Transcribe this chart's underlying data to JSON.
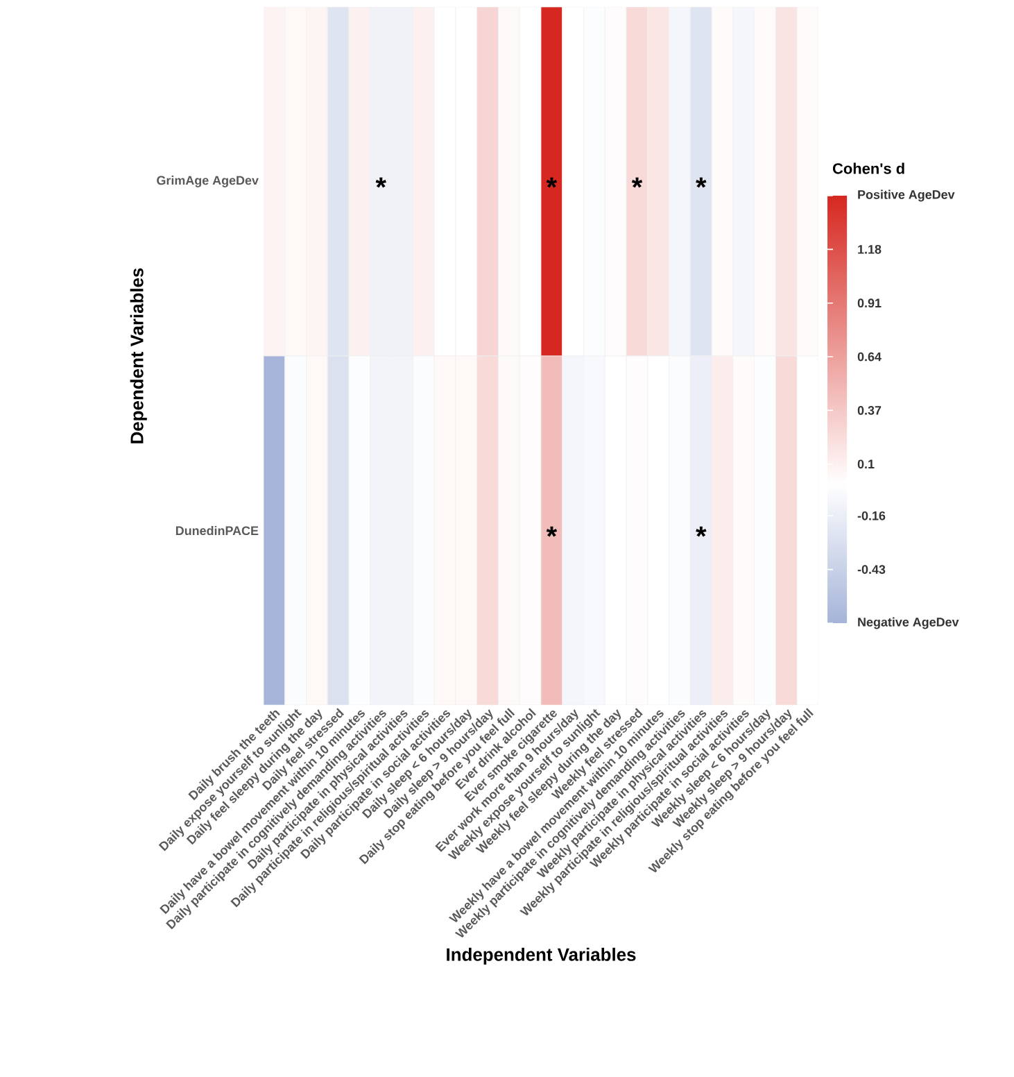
{
  "chart_data": {
    "type": "heatmap",
    "xlabel": "Independent Variables",
    "ylabel": "Dependent Variables",
    "clabel": "Cohen's d",
    "categories": [
      "Daily brush the teeth",
      "Daily expose yourself to sunlight",
      "Daily feel sleepy during the day",
      "Daily feel stressed",
      "Daily have a bowel movement within 10 minutes",
      "Daily participate in cognitively demanding activities",
      "Daily participate in physical activities",
      "Daily participate in religious/spiritual activities",
      "Daily participate in social activities",
      "Daily sleep < 6 hours/day",
      "Daily sleep > 9 hours/day",
      "Daily stop eating before you feel full",
      "Ever drink alcohol",
      "Ever smoke cigarette",
      "Ever work more than 9 hours/day",
      "Weekly expose yourself to sunlight",
      "Weekly feel sleepy during the day",
      "Weekly feel stressed",
      "Weekly have a bowel movement within 10 minutes",
      "Weekly participate in cognitively demanding activities",
      "Weekly participate in physical activities",
      "Weekly participate in religious/spiritual activities",
      "Weekly participate in social activities",
      "Weekly sleep < 6 hours/day",
      "Weekly sleep > 9 hours/day",
      "Weekly stop eating before you feel full"
    ],
    "y_categories": [
      "GrimAge AgeDev",
      "DunedinPACE"
    ],
    "cells": [
      [
        0.08,
        0.05,
        0.07,
        -0.25,
        0.1,
        -0.12,
        -0.12,
        0.1,
        0.0,
        0.0,
        0.28,
        0.04,
        0.0,
        1.45,
        0.0,
        -0.02,
        0.02,
        0.25,
        0.17,
        -0.08,
        -0.25,
        0.03,
        -0.08,
        0.03,
        0.18,
        0.03
      ],
      [
        -0.7,
        -0.03,
        0.05,
        -0.28,
        -0.02,
        -0.1,
        -0.1,
        -0.03,
        0.05,
        0.05,
        0.25,
        0.04,
        0.02,
        0.45,
        -0.08,
        -0.06,
        0.0,
        0.02,
        0.0,
        -0.03,
        -0.15,
        0.12,
        0.03,
        -0.02,
        0.25,
        0.0
      ]
    ],
    "clim": [
      -0.7,
      1.45
    ],
    "cticks": [
      {
        "value": -0.7,
        "label": "Negative AgeDev"
      },
      -0.43,
      -0.16,
      0.1,
      0.37,
      0.64,
      0.91,
      1.18,
      {
        "value": 1.45,
        "label": "Positive AgeDev"
      }
    ],
    "cell_labels": [
      [
        null,
        null,
        null,
        null,
        null,
        "*",
        null,
        null,
        null,
        null,
        null,
        null,
        null,
        "*",
        null,
        null,
        null,
        "*",
        null,
        null,
        "*",
        null,
        null,
        null,
        null,
        null
      ],
      [
        null,
        null,
        null,
        null,
        null,
        null,
        null,
        null,
        null,
        null,
        null,
        null,
        null,
        "*",
        null,
        null,
        null,
        null,
        null,
        null,
        "*",
        null,
        null,
        null,
        null,
        null
      ]
    ]
  }
}
